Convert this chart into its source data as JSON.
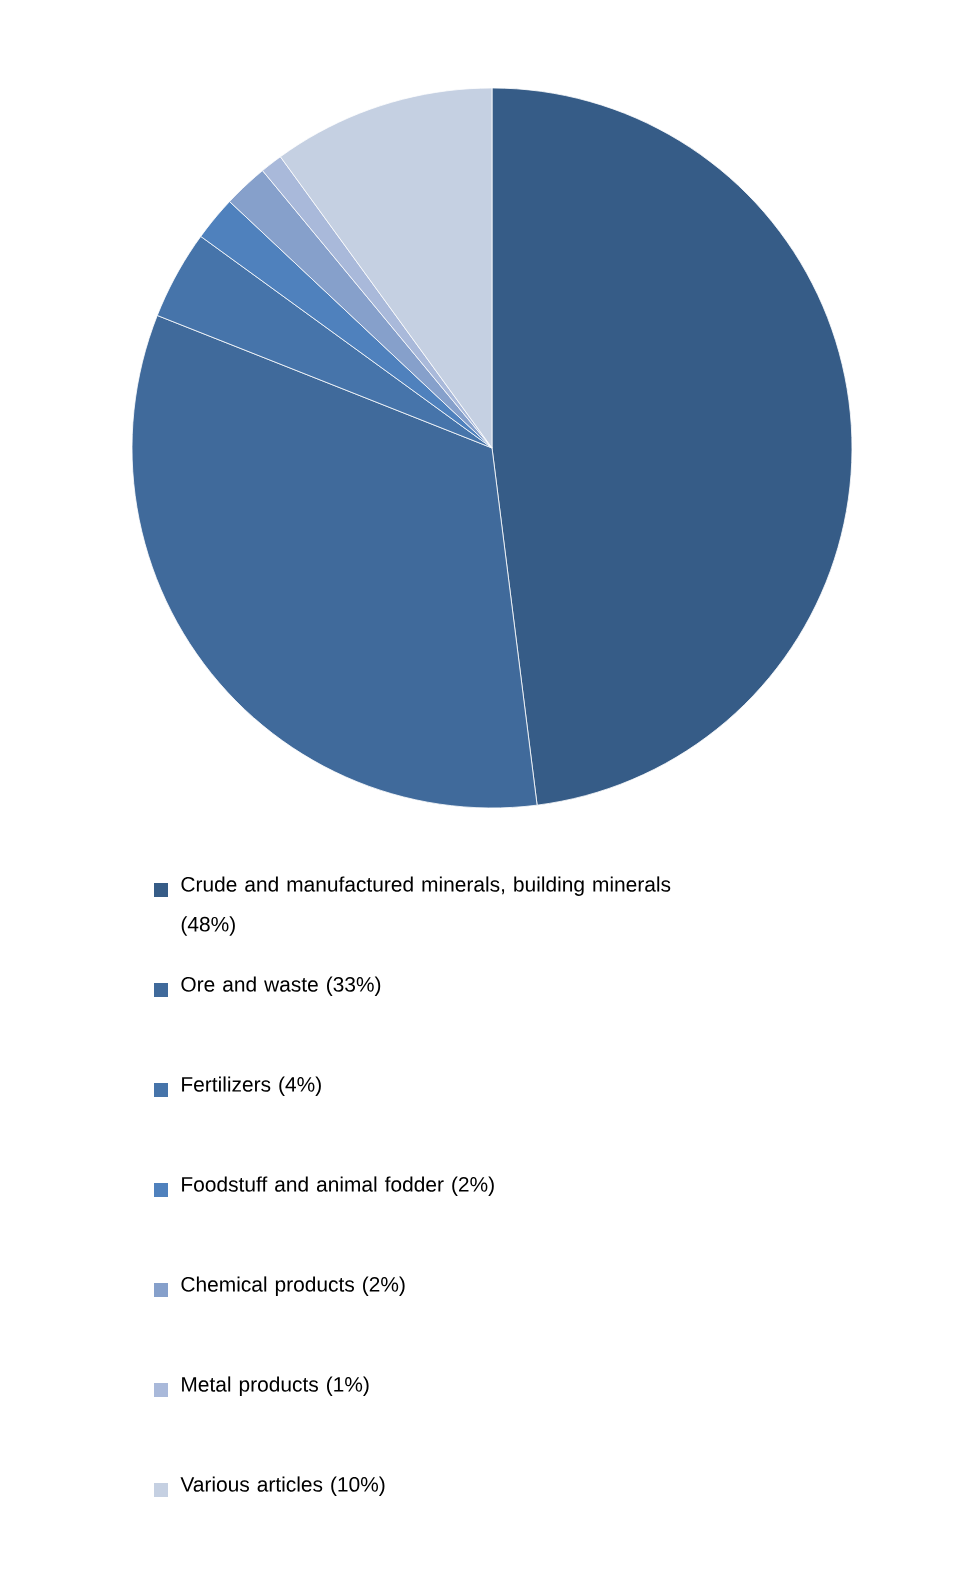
{
  "chart_data": {
    "type": "pie",
    "categories": [
      "Crude and manufactured minerals, building minerals (48%)",
      "Ore and waste  (33%)",
      "Fertilizers  (4%)",
      "Foodstuff and animal fodder  (2%)",
      "Chemical products  (2%)",
      "Metal products  (1%)",
      "Various articles (10%)"
    ],
    "values": [
      48,
      33,
      4,
      2,
      2,
      1,
      10
    ],
    "colors": [
      "#365c87",
      "#406a9b",
      "#4674aa",
      "#4f81bd",
      "#86a0cb",
      "#a9b9da",
      "#c5d0e2"
    ],
    "legend": "bottom"
  }
}
